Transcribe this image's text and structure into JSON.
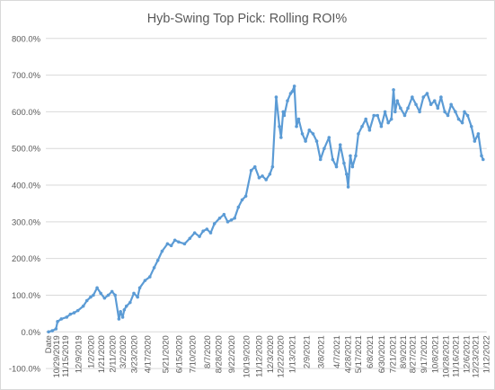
{
  "chart_data": {
    "type": "line",
    "title": "Hyb-Swing Top Pick: Rolling ROI%",
    "xlabel": "",
    "ylabel": "",
    "x_first_label": "Date",
    "ylim": [
      -100,
      800
    ],
    "y_ticks": [
      "-100.0%",
      "0.0%",
      "100.0%",
      "200.0%",
      "300.0%",
      "400.0%",
      "500.0%",
      "600.0%",
      "700.0%",
      "800.0%"
    ],
    "y_tick_values": [
      -100,
      0,
      100,
      200,
      300,
      400,
      500,
      600,
      700,
      800
    ],
    "x_tick_labels": [
      "10/29/2019",
      "11/15/2019",
      "12/9/2019",
      "1/2/2020",
      "1/21/2020",
      "2/11/2020",
      "3/2/2020",
      "3/23/2020",
      "4/17/2020",
      "5/21/2020",
      "6/15/2020",
      "7/10/2020",
      "8/7/2020",
      "8/28/2020",
      "9/22/2020",
      "10/19/2020",
      "11/12/2020",
      "12/3/2020",
      "12/22/2020",
      "1/13/2021",
      "2/9/2021",
      "3/8/2021",
      "4/7/2021",
      "4/28/2021",
      "5/17/2021",
      "6/8/2021",
      "6/30/2021",
      "7/21/2021",
      "8/9/2021",
      "8/27/2021",
      "9/17/2021",
      "10/8/2021",
      "10/28/2021",
      "11/16/2021",
      "12/6/2021",
      "12/23/2021",
      "1/12/2022"
    ],
    "grid": true,
    "legend": "none",
    "series": [
      {
        "color": "#5b9bd5",
        "x": [
          "10/29/2019",
          "11/5/2019",
          "11/12/2019",
          "11/15/2019",
          "11/22/2019",
          "12/2/2019",
          "12/9/2019",
          "12/16/2019",
          "12/23/2019",
          "1/2/2020",
          "1/9/2020",
          "1/16/2020",
          "1/21/2020",
          "1/28/2020",
          "2/4/2020",
          "2/11/2020",
          "2/18/2020",
          "2/25/2020",
          "3/2/2020",
          "3/9/2020",
          "3/12/2020",
          "3/16/2020",
          "3/19/2020",
          "3/23/2020",
          "3/30/2020",
          "4/6/2020",
          "4/13/2020",
          "4/17/2020",
          "4/27/2020",
          "5/6/2020",
          "5/14/2020",
          "5/21/2020",
          "5/29/2020",
          "6/8/2020",
          "6/15/2020",
          "6/22/2020",
          "6/29/2020",
          "7/10/2020",
          "7/20/2020",
          "7/29/2020",
          "8/7/2020",
          "8/14/2020",
          "8/21/2020",
          "8/28/2020",
          "9/4/2020",
          "9/14/2020",
          "9/22/2020",
          "9/29/2020",
          "10/6/2020",
          "10/12/2020",
          "10/19/2020",
          "10/26/2020",
          "11/2/2020",
          "11/12/2020",
          "11/19/2020",
          "11/27/2020",
          "12/3/2020",
          "12/10/2020",
          "12/17/2020",
          "12/22/2020",
          "12/29/2020",
          "1/4/2021",
          "1/7/2021",
          "1/11/2021",
          "1/13/2021",
          "1/19/2021",
          "1/25/2021",
          "1/28/2021",
          "2/1/2021",
          "2/5/2021",
          "2/9/2021",
          "2/16/2021",
          "2/22/2021",
          "3/1/2021",
          "3/8/2021",
          "3/15/2021",
          "3/22/2021",
          "3/29/2021",
          "4/7/2021",
          "4/14/2021",
          "4/21/2021",
          "4/28/2021",
          "5/5/2021",
          "5/10/2021",
          "5/13/2021",
          "5/17/2021",
          "5/21/2021",
          "5/27/2021",
          "6/1/2021",
          "6/8/2021",
          "6/15/2021",
          "6/22/2021",
          "6/30/2021",
          "7/7/2021",
          "7/14/2021",
          "7/21/2021",
          "7/27/2021",
          "8/2/2021",
          "8/6/2021",
          "8/9/2021",
          "8/13/2021",
          "8/19/2021",
          "8/27/2021",
          "9/2/2021",
          "9/10/2021",
          "9/17/2021",
          "9/24/2021",
          "10/1/2021",
          "10/8/2021",
          "10/15/2021",
          "10/22/2021",
          "10/28/2021",
          "11/3/2021",
          "11/10/2021",
          "11/16/2021",
          "11/22/2021",
          "11/30/2021",
          "12/6/2021",
          "12/13/2021",
          "12/17/2021",
          "12/23/2021",
          "12/30/2021",
          "1/5/2022",
          "1/12/2022",
          "1/18/2022",
          "1/21/2022"
        ],
        "values": [
          0,
          3,
          8,
          28,
          35,
          40,
          48,
          52,
          58,
          70,
          85,
          95,
          100,
          120,
          105,
          92,
          100,
          110,
          100,
          35,
          55,
          40,
          60,
          70,
          80,
          105,
          95,
          120,
          140,
          150,
          175,
          195,
          220,
          240,
          235,
          250,
          245,
          240,
          255,
          270,
          260,
          275,
          280,
          270,
          295,
          310,
          320,
          300,
          305,
          310,
          340,
          360,
          370,
          440,
          450,
          420,
          425,
          415,
          430,
          450,
          640,
          560,
          530,
          600,
          590,
          630,
          650,
          655,
          670,
          560,
          580,
          540,
          520,
          550,
          540,
          520,
          470,
          500,
          530,
          470,
          450,
          510,
          460,
          430,
          395,
          480,
          450,
          480,
          540,
          560,
          580,
          550,
          590,
          590,
          560,
          600,
          570,
          580,
          660,
          600,
          630,
          610,
          590,
          610,
          640,
          620,
          600,
          640,
          650,
          620,
          630,
          610,
          640,
          600,
          590,
          620,
          600,
          580,
          570,
          600,
          590,
          560,
          520,
          540,
          480,
          470
        ]
      }
    ]
  }
}
